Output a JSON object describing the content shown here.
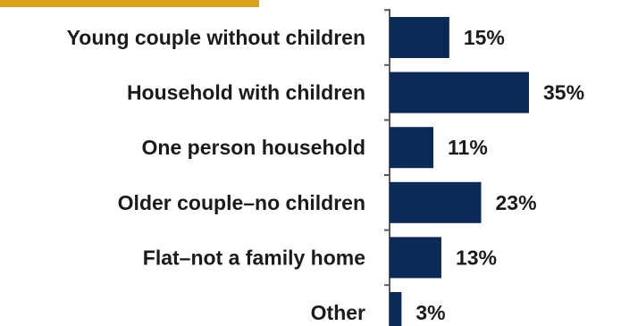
{
  "colors": {
    "bar": "#0b2a55",
    "axis": "#5a5a5a",
    "accent": "#d9a21b"
  },
  "chart_data": {
    "type": "bar",
    "orientation": "horizontal",
    "categories": [
      "Young couple without children",
      "Household with children",
      "One person household",
      "Older couple–no children",
      "Flat–not a family home",
      "Other"
    ],
    "values": [
      15,
      35,
      11,
      23,
      13,
      3
    ],
    "value_labels": [
      "15%",
      "35%",
      "11%",
      "23%",
      "13%",
      "3%"
    ],
    "unit": "%",
    "xlim": [
      0,
      35
    ],
    "grid": false,
    "legend": "none"
  }
}
